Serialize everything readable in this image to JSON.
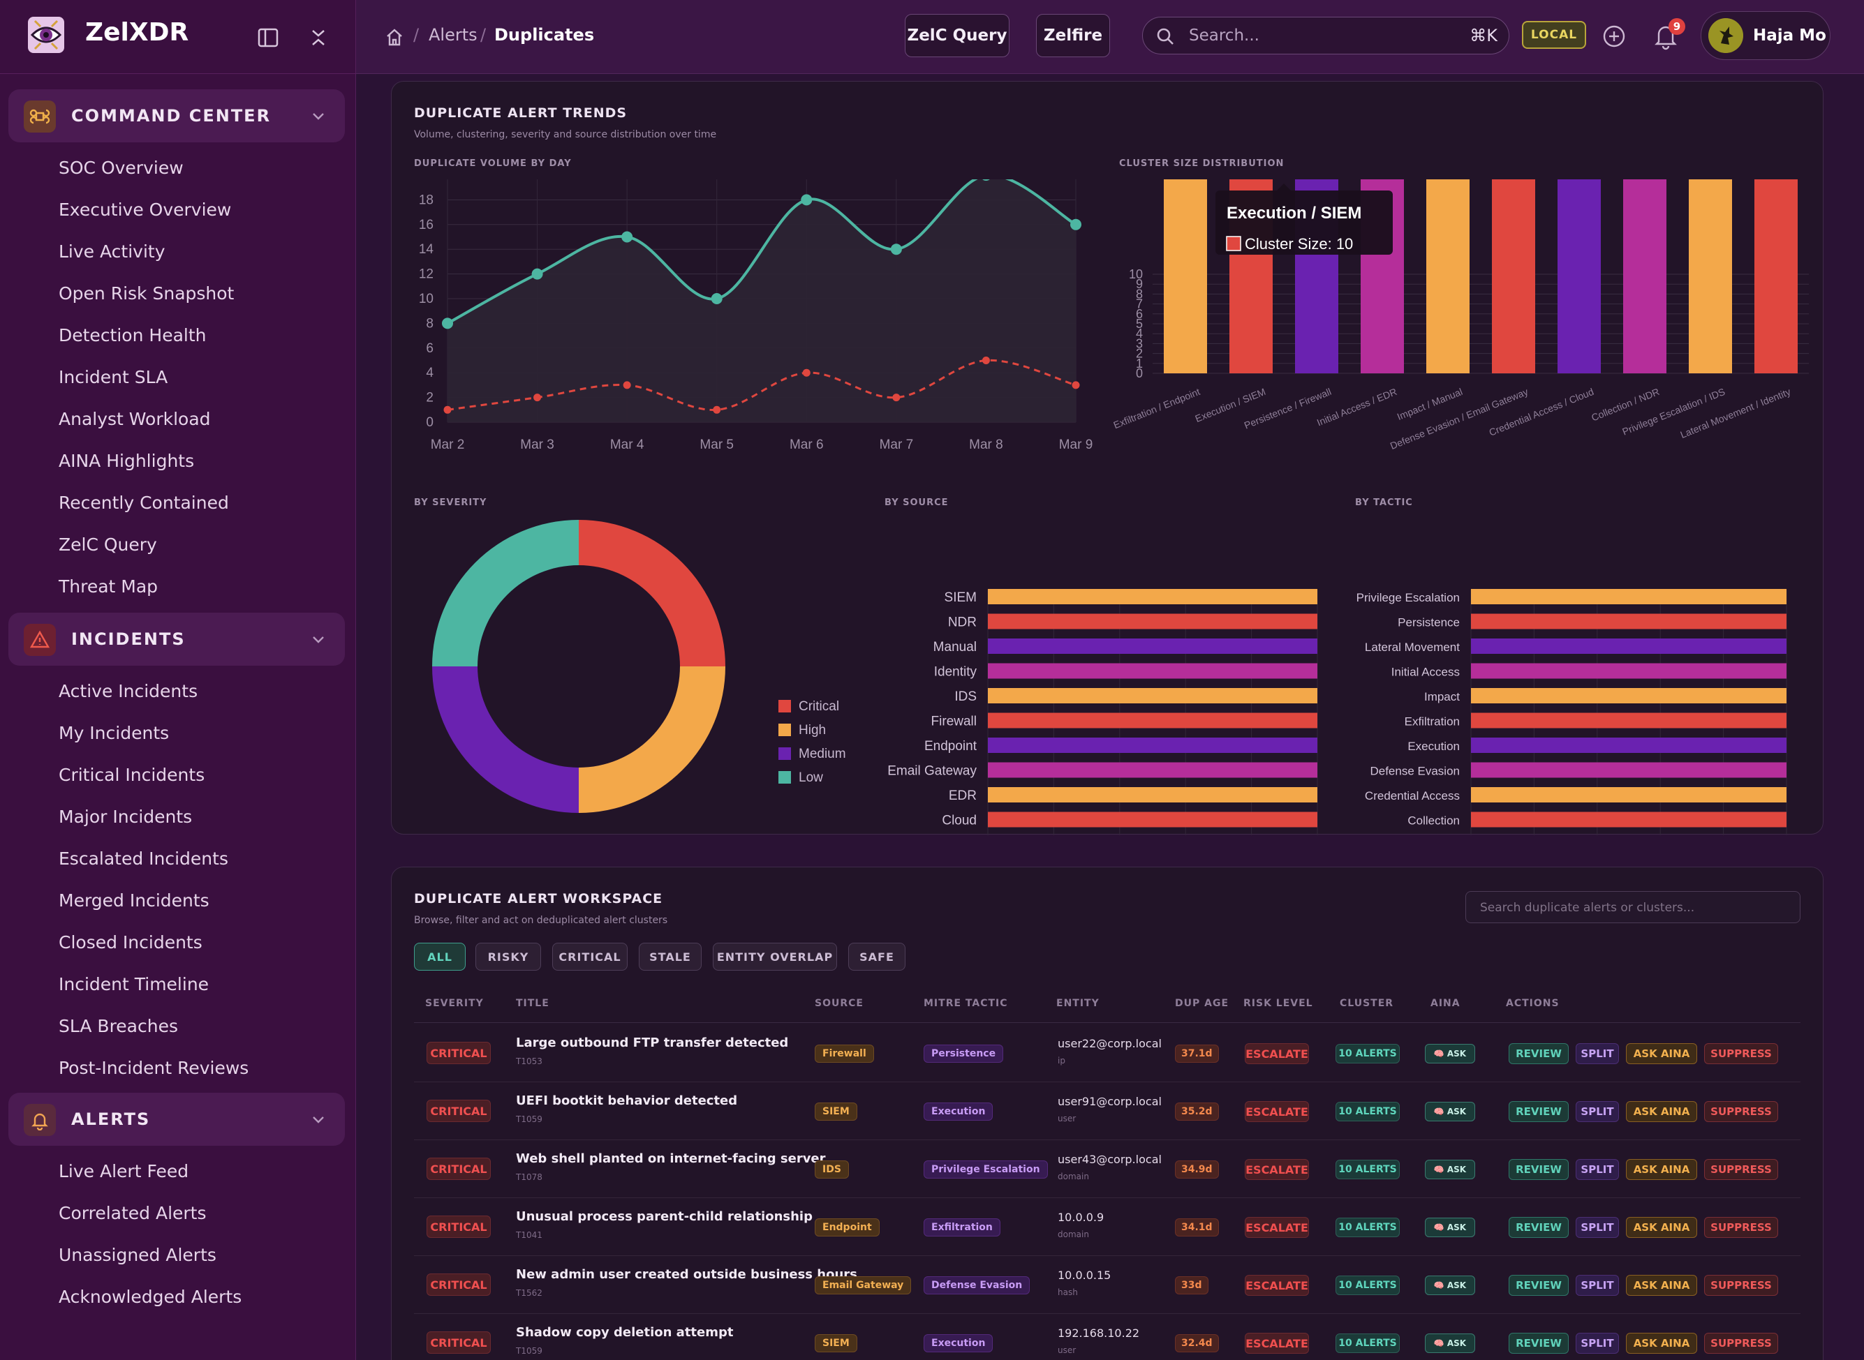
{
  "app": {
    "name": "ZelXDR"
  },
  "sidebar": {
    "sections": [
      {
        "title": "COMMAND CENTER",
        "icon": "command-icon",
        "items": [
          "SOC Overview",
          "Executive Overview",
          "Live Activity",
          "Open Risk Snapshot",
          "Detection Health",
          "Incident SLA",
          "Analyst Workload",
          "AINA Highlights",
          "Recently Contained",
          "ZelC Query",
          "Threat Map"
        ]
      },
      {
        "title": "INCIDENTS",
        "icon": "warning-triangle-icon",
        "items": [
          "Active Incidents",
          "My Incidents",
          "Critical Incidents",
          "Major Incidents",
          "Escalated Incidents",
          "Merged Incidents",
          "Closed Incidents",
          "Incident Timeline",
          "SLA Breaches",
          "Post-Incident Reviews"
        ]
      },
      {
        "title": "ALERTS",
        "icon": "bell-icon",
        "items": [
          "Live Alert Feed",
          "Correlated Alerts",
          "Unassigned Alerts",
          "Acknowledged Alerts"
        ]
      }
    ]
  },
  "topbar": {
    "breadcrumb": [
      "Alerts",
      "Duplicates"
    ],
    "query_button": "ZelC Query",
    "zelfire_button": "Zelfire",
    "search_placeholder": "Search...",
    "search_shortcut": "⌘K",
    "env_badge": "LOCAL",
    "notification_count": "9",
    "user_name": "Haja Mo"
  },
  "trends": {
    "title": "DUPLICATE ALERT TRENDS",
    "subtitle": "Volume, clustering, severity and source distribution over time",
    "volume_title": "DUPLICATE VOLUME BY DAY",
    "cluster_title": "CLUSTER SIZE DISTRIBUTION",
    "severity_title": "BY SEVERITY",
    "source_title": "BY SOURCE",
    "tactic_title": "BY TACTIC",
    "tooltip": {
      "title": "Execution / SIEM",
      "label": "Cluster Size: 10"
    }
  },
  "colors": {
    "orange": "#f3a84a",
    "red": "#e0473f",
    "purple": "#6a22b0",
    "magenta": "#b52e9a",
    "teal": "#4db6a2"
  },
  "chart_data": [
    {
      "type": "line",
      "title": "DUPLICATE VOLUME BY DAY",
      "x": [
        "Mar 2",
        "Mar 3",
        "Mar 4",
        "Mar 5",
        "Mar 6",
        "Mar 7",
        "Mar 8",
        "Mar 9"
      ],
      "series": [
        {
          "values": [
            8,
            12,
            15,
            10,
            18,
            14,
            20,
            16
          ],
          "color": "#4db6a2",
          "style": "solid"
        },
        {
          "values": [
            1,
            2,
            3,
            1,
            4,
            2,
            5,
            3
          ],
          "color": "#e0473f",
          "style": "dashed"
        }
      ],
      "yticks": [
        0,
        2,
        4,
        6,
        8,
        10,
        12,
        14,
        16,
        18,
        20
      ],
      "ylim": [
        0,
        20
      ]
    },
    {
      "type": "bar",
      "title": "CLUSTER SIZE DISTRIBUTION",
      "categories": [
        "Exfiltration / Endpoint",
        "Execution / SIEM",
        "Persistence / Firewall",
        "Initial Access / EDR",
        "Impact / Manual",
        "Defense Evasion / Email Gateway",
        "Credential Access / Cloud",
        "Collection / NDR",
        "Privilege Escalation / IDS",
        "Lateral Movement / Identity"
      ],
      "values": [
        10,
        10,
        10,
        10,
        10,
        10,
        10,
        10,
        10,
        10
      ],
      "colors": [
        "#f3a84a",
        "#e0473f",
        "#6a22b0",
        "#b52e9a",
        "#f3a84a",
        "#e0473f",
        "#6a22b0",
        "#b52e9a",
        "#f3a84a",
        "#e0473f"
      ],
      "yticks": [
        0,
        1,
        2,
        3,
        4,
        5,
        6,
        7,
        8,
        9,
        10
      ],
      "ylim": [
        0,
        10
      ]
    },
    {
      "type": "pie",
      "title": "BY SEVERITY",
      "categories": [
        "Critical",
        "High",
        "Medium",
        "Low"
      ],
      "values": [
        1,
        1,
        1,
        1
      ],
      "colors": [
        "#e0473f",
        "#f3a84a",
        "#6a22b0",
        "#4db6a2"
      ]
    },
    {
      "type": "bar",
      "orientation": "horizontal",
      "title": "BY SOURCE",
      "categories": [
        "SIEM",
        "NDR",
        "Manual",
        "Identity",
        "IDS",
        "Firewall",
        "Endpoint",
        "Email Gateway",
        "EDR",
        "Cloud"
      ],
      "values": [
        10,
        10,
        10,
        10,
        10,
        10,
        10,
        10,
        10,
        10
      ],
      "colors": [
        "#f3a84a",
        "#e0473f",
        "#6a22b0",
        "#b52e9a",
        "#f3a84a",
        "#e0473f",
        "#6a22b0",
        "#b52e9a",
        "#f3a84a",
        "#e0473f"
      ],
      "xticks": [
        0,
        2,
        4,
        6,
        8,
        10
      ],
      "xlim": [
        0,
        10
      ]
    },
    {
      "type": "bar",
      "orientation": "horizontal",
      "title": "BY TACTIC",
      "categories": [
        "Privilege Escalation",
        "Persistence",
        "Lateral Movement",
        "Initial Access",
        "Impact",
        "Exfiltration",
        "Execution",
        "Defense Evasion",
        "Credential Access",
        "Collection"
      ],
      "values": [
        10,
        10,
        10,
        10,
        10,
        10,
        10,
        10,
        10,
        10
      ],
      "colors": [
        "#f3a84a",
        "#e0473f",
        "#6a22b0",
        "#b52e9a",
        "#f3a84a",
        "#e0473f",
        "#6a22b0",
        "#b52e9a",
        "#f3a84a",
        "#e0473f"
      ],
      "xticks": [
        0,
        2,
        4,
        6,
        8,
        10
      ],
      "xlim": [
        0,
        10
      ]
    }
  ],
  "workspace": {
    "title": "DUPLICATE ALERT WORKSPACE",
    "subtitle": "Browse, filter and act on deduplicated alert clusters",
    "search_placeholder": "Search duplicate alerts or clusters...",
    "filters": [
      "ALL",
      "RISKY",
      "CRITICAL",
      "STALE",
      "ENTITY OVERLAP",
      "SAFE"
    ],
    "active_filter": "ALL",
    "columns": [
      "SEVERITY",
      "TITLE",
      "SOURCE",
      "MITRE TACTIC",
      "ENTITY",
      "DUP AGE",
      "RISK LEVEL",
      "CLUSTER",
      "AINA",
      "ACTIONS"
    ],
    "ask_label": "ASK",
    "action_labels": {
      "review": "REVIEW",
      "split": "SPLIT",
      "ask_aina": "ASK AINA",
      "suppress": "SUPPRESS"
    },
    "rows": [
      {
        "severity": "CRITICAL",
        "title": "Large outbound FTP transfer detected",
        "id": "T1053",
        "source": "Firewall",
        "tactic": "Persistence",
        "entity": "user22@corp.local",
        "entity_type": "ip",
        "age": "37.1d",
        "risk": "ESCALATE",
        "cluster": "10 ALERTS"
      },
      {
        "severity": "CRITICAL",
        "title": "UEFI bootkit behavior detected",
        "id": "T1059",
        "source": "SIEM",
        "tactic": "Execution",
        "entity": "user91@corp.local",
        "entity_type": "user",
        "age": "35.2d",
        "risk": "ESCALATE",
        "cluster": "10 ALERTS"
      },
      {
        "severity": "CRITICAL",
        "title": "Web shell planted on internet-facing server",
        "id": "T1078",
        "source": "IDS",
        "tactic": "Privilege Escalation",
        "entity": "user43@corp.local",
        "entity_type": "domain",
        "age": "34.9d",
        "risk": "ESCALATE",
        "cluster": "10 ALERTS"
      },
      {
        "severity": "CRITICAL",
        "title": "Unusual process parent-child relationship",
        "id": "T1041",
        "source": "Endpoint",
        "tactic": "Exfiltration",
        "entity": "10.0.0.9",
        "entity_type": "domain",
        "age": "34.1d",
        "risk": "ESCALATE",
        "cluster": "10 ALERTS"
      },
      {
        "severity": "CRITICAL",
        "title": "New admin user created outside business hours",
        "id": "T1562",
        "source": "Email Gateway",
        "tactic": "Defense Evasion",
        "entity": "10.0.0.15",
        "entity_type": "hash",
        "age": "33d",
        "risk": "ESCALATE",
        "cluster": "10 ALERTS"
      },
      {
        "severity": "CRITICAL",
        "title": "Shadow copy deletion attempt",
        "id": "T1059",
        "source": "SIEM",
        "tactic": "Execution",
        "entity": "192.168.10.22",
        "entity_type": "user",
        "age": "32.4d",
        "risk": "ESCALATE",
        "cluster": "10 ALERTS"
      }
    ]
  }
}
